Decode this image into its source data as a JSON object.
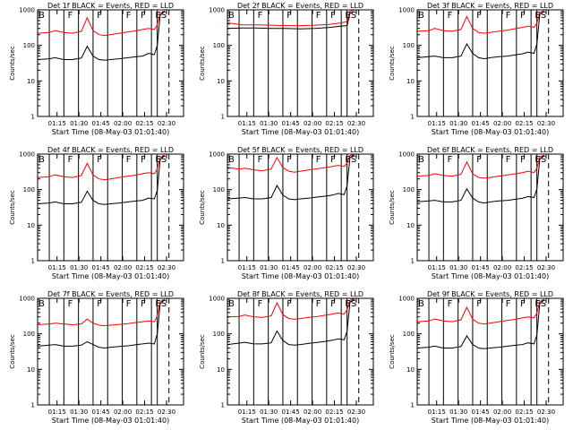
{
  "figure": {
    "background": "#ffffff",
    "colors": {
      "events": "#000000",
      "lld": "#ff0000",
      "axes": "#000000"
    }
  },
  "chart_data": [
    {
      "type": "line",
      "title": "Det 1f BLACK = Events, RED = LLD",
      "xlabel": "Start Time (08-May-03 01:01:40)",
      "ylabel": "Counts/sec",
      "yscale": "log",
      "ylim": [
        1,
        1000
      ],
      "y_ticks": [
        "1",
        "10",
        "100",
        "1000"
      ],
      "x_ticks": [
        "01:15",
        "01:30",
        "01:45",
        "02:00",
        "02:15",
        "02:30"
      ],
      "xlim_minutes": [
        0,
        100
      ],
      "segment_markers": [
        "B",
        "F",
        "F",
        "F",
        "F",
        "E",
        "S"
      ],
      "series": [
        {
          "name": "BLACK = Events",
          "color": "#000000",
          "x": [
            0,
            8,
            12,
            18,
            24,
            30,
            34,
            38,
            42,
            46,
            50,
            56,
            62,
            68,
            72,
            76,
            80,
            82,
            84,
            87
          ],
          "y": [
            40,
            42,
            45,
            40,
            40,
            44,
            95,
            50,
            40,
            38,
            40,
            42,
            45,
            48,
            50,
            60,
            55,
            100,
            700,
            900
          ]
        },
        {
          "name": "RED = LLD",
          "color": "#ff0000",
          "x": [
            0,
            8,
            12,
            18,
            24,
            30,
            34,
            38,
            42,
            46,
            50,
            56,
            62,
            68,
            72,
            76,
            80,
            82,
            84,
            87
          ],
          "y": [
            220,
            230,
            260,
            230,
            220,
            250,
            600,
            260,
            200,
            190,
            200,
            220,
            240,
            260,
            280,
            300,
            280,
            380,
            800,
            950
          ]
        }
      ]
    },
    {
      "type": "line",
      "title": "Det 2f BLACK = Events, RED = LLD",
      "xlabel": "Start Time (08-May-03 01:01:40)",
      "ylabel": "Counts/sec",
      "yscale": "log",
      "ylim": [
        1,
        1000
      ],
      "y_ticks": [
        "1",
        "10",
        "100",
        "1000"
      ],
      "x_ticks": [
        "01:15",
        "01:30",
        "01:45",
        "02:00",
        "02:15",
        "02:30"
      ],
      "xlim_minutes": [
        0,
        100
      ],
      "segment_markers": [
        "B",
        "F",
        "F",
        "F",
        "F",
        "E",
        "S"
      ],
      "series": [
        {
          "name": "BLACK = Events",
          "color": "#000000",
          "x": [
            0,
            10,
            20,
            30,
            40,
            50,
            60,
            70,
            78,
            82,
            84,
            87
          ],
          "y": [
            300,
            310,
            310,
            300,
            300,
            290,
            300,
            320,
            350,
            360,
            800,
            900
          ]
        },
        {
          "name": "RED = LLD",
          "color": "#ff0000",
          "x": [
            0,
            10,
            20,
            30,
            40,
            50,
            60,
            70,
            78,
            82,
            84,
            87
          ],
          "y": [
            430,
            380,
            380,
            370,
            360,
            360,
            370,
            390,
            430,
            470,
            900,
            1000
          ]
        }
      ]
    },
    {
      "type": "line",
      "title": "Det 3f BLACK = Events, RED = LLD",
      "xlabel": "Start Time (08-May-03 01:01:40)",
      "ylabel": "Counts/sec",
      "yscale": "log",
      "ylim": [
        1,
        1000
      ],
      "y_ticks": [
        "1",
        "10",
        "100",
        "1000"
      ],
      "x_ticks": [
        "01:15",
        "01:30",
        "01:45",
        "02:00",
        "02:15",
        "02:30"
      ],
      "xlim_minutes": [
        0,
        100
      ],
      "segment_markers": [
        "B",
        "F",
        "F",
        "F",
        "F",
        "E",
        "S"
      ],
      "series": [
        {
          "name": "BLACK = Events",
          "color": "#000000",
          "x": [
            0,
            8,
            12,
            18,
            24,
            30,
            34,
            38,
            42,
            46,
            50,
            56,
            62,
            68,
            72,
            76,
            80,
            82,
            84,
            87
          ],
          "y": [
            45,
            48,
            50,
            45,
            45,
            50,
            110,
            60,
            45,
            42,
            45,
            48,
            50,
            55,
            58,
            65,
            60,
            110,
            750,
            900
          ]
        },
        {
          "name": "RED = LLD",
          "color": "#ff0000",
          "x": [
            0,
            8,
            12,
            18,
            24,
            30,
            34,
            38,
            42,
            46,
            50,
            56,
            62,
            68,
            72,
            76,
            80,
            82,
            84,
            87
          ],
          "y": [
            250,
            260,
            300,
            260,
            250,
            280,
            650,
            300,
            230,
            220,
            230,
            250,
            270,
            300,
            320,
            350,
            320,
            420,
            850,
            950
          ]
        }
      ]
    },
    {
      "type": "line",
      "title": "Det 4f BLACK = Events, RED = LLD",
      "xlabel": "Start Time (08-May-03 01:01:40)",
      "ylabel": "Counts/sec",
      "yscale": "log",
      "ylim": [
        1,
        1000
      ],
      "y_ticks": [
        "1",
        "10",
        "100",
        "1000"
      ],
      "x_ticks": [
        "01:15",
        "01:30",
        "01:45",
        "02:00",
        "02:15",
        "02:30"
      ],
      "xlim_minutes": [
        0,
        100
      ],
      "segment_markers": [
        "B",
        "F",
        "F",
        "F",
        "F",
        "E",
        "S"
      ],
      "series": [
        {
          "name": "BLACK = Events",
          "color": "#000000",
          "x": [
            0,
            8,
            12,
            18,
            24,
            30,
            34,
            38,
            42,
            46,
            50,
            56,
            62,
            68,
            72,
            76,
            80,
            82,
            84,
            87
          ],
          "y": [
            40,
            42,
            45,
            40,
            40,
            44,
            90,
            50,
            40,
            38,
            40,
            42,
            45,
            48,
            50,
            58,
            55,
            95,
            700,
            900
          ]
        },
        {
          "name": "RED = LLD",
          "color": "#ff0000",
          "x": [
            0,
            8,
            12,
            18,
            24,
            30,
            34,
            38,
            42,
            46,
            50,
            56,
            62,
            68,
            72,
            76,
            80,
            82,
            84,
            87
          ],
          "y": [
            220,
            230,
            260,
            230,
            220,
            250,
            550,
            260,
            200,
            190,
            200,
            220,
            240,
            260,
            280,
            300,
            280,
            380,
            800,
            950
          ]
        }
      ]
    },
    {
      "type": "line",
      "title": "Det 5f BLACK = Events, RED = LLD",
      "xlabel": "Start Time (08-May-03 01:01:40)",
      "ylabel": "Counts/sec",
      "yscale": "log",
      "ylim": [
        1,
        1000
      ],
      "y_ticks": [
        "1",
        "10",
        "100",
        "1000"
      ],
      "x_ticks": [
        "01:15",
        "01:30",
        "01:45",
        "02:00",
        "02:15",
        "02:30"
      ],
      "xlim_minutes": [
        0,
        100
      ],
      "segment_markers": [
        "B",
        "F",
        "F",
        "F",
        "F",
        "E",
        "S"
      ],
      "series": [
        {
          "name": "BLACK = Events",
          "color": "#000000",
          "x": [
            0,
            8,
            12,
            18,
            24,
            30,
            34,
            38,
            42,
            46,
            50,
            56,
            62,
            68,
            72,
            76,
            80,
            82,
            84,
            87
          ],
          "y": [
            55,
            58,
            60,
            55,
            55,
            60,
            130,
            70,
            55,
            52,
            55,
            58,
            62,
            66,
            70,
            78,
            72,
            130,
            800,
            950
          ]
        },
        {
          "name": "RED = LLD",
          "color": "#ff0000",
          "x": [
            0,
            8,
            12,
            18,
            24,
            30,
            34,
            38,
            42,
            46,
            50,
            56,
            62,
            68,
            72,
            76,
            80,
            82,
            84,
            87
          ],
          "y": [
            420,
            380,
            400,
            360,
            340,
            380,
            800,
            420,
            330,
            310,
            330,
            360,
            390,
            420,
            450,
            480,
            450,
            560,
            900,
            1000
          ]
        }
      ]
    },
    {
      "type": "line",
      "title": "Det 6f BLACK = Events, RED = LLD",
      "xlabel": "Start Time (08-May-03 01:01:40)",
      "ylabel": "Counts/sec",
      "yscale": "log",
      "ylim": [
        1,
        1000
      ],
      "y_ticks": [
        "1",
        "10",
        "100",
        "1000"
      ],
      "x_ticks": [
        "01:15",
        "01:30",
        "01:45",
        "02:00",
        "02:15",
        "02:30"
      ],
      "xlim_minutes": [
        0,
        100
      ],
      "segment_markers": [
        "B",
        "F",
        "F",
        "F",
        "F",
        "E",
        "S"
      ],
      "series": [
        {
          "name": "BLACK = Events",
          "color": "#000000",
          "x": [
            0,
            8,
            12,
            18,
            24,
            30,
            34,
            38,
            42,
            46,
            50,
            56,
            62,
            68,
            72,
            76,
            80,
            82,
            84,
            87
          ],
          "y": [
            45,
            48,
            50,
            45,
            45,
            50,
            105,
            58,
            45,
            42,
            45,
            48,
            50,
            54,
            57,
            64,
            60,
            105,
            720,
            900
          ]
        },
        {
          "name": "RED = LLD",
          "color": "#ff0000",
          "x": [
            0,
            8,
            12,
            18,
            24,
            30,
            34,
            38,
            42,
            46,
            50,
            56,
            62,
            68,
            72,
            76,
            80,
            82,
            84,
            87
          ],
          "y": [
            240,
            250,
            280,
            250,
            240,
            270,
            600,
            280,
            220,
            210,
            220,
            240,
            260,
            280,
            300,
            330,
            300,
            400,
            820,
            950
          ]
        }
      ]
    },
    {
      "type": "line",
      "title": "Det 7f BLACK = Events, RED = LLD",
      "xlabel": "Start Time (08-May-03 01:01:40)",
      "ylabel": "Counts/sec",
      "yscale": "log",
      "ylim": [
        1,
        1000
      ],
      "y_ticks": [
        "1",
        "10",
        "100",
        "1000"
      ],
      "x_ticks": [
        "01:15",
        "01:30",
        "01:45",
        "02:00",
        "02:15",
        "02:30"
      ],
      "xlim_minutes": [
        0,
        100
      ],
      "segment_markers": [
        "B",
        "F",
        "F",
        "F",
        "F",
        "E",
        "S"
      ],
      "series": [
        {
          "name": "BLACK = Events",
          "color": "#000000",
          "x": [
            0,
            8,
            12,
            18,
            24,
            30,
            34,
            38,
            42,
            46,
            50,
            56,
            62,
            68,
            72,
            76,
            80,
            82,
            84,
            87
          ],
          "y": [
            45,
            48,
            50,
            45,
            45,
            48,
            60,
            50,
            42,
            40,
            42,
            44,
            46,
            50,
            52,
            55,
            52,
            100,
            700,
            900
          ]
        },
        {
          "name": "RED = LLD",
          "color": "#ff0000",
          "x": [
            0,
            8,
            12,
            18,
            24,
            30,
            34,
            38,
            42,
            46,
            50,
            56,
            62,
            68,
            72,
            76,
            80,
            82,
            84,
            87
          ],
          "y": [
            180,
            190,
            200,
            190,
            180,
            190,
            260,
            200,
            175,
            170,
            175,
            185,
            195,
            210,
            220,
            230,
            220,
            320,
            800,
            950
          ]
        }
      ]
    },
    {
      "type": "line",
      "title": "Det 8f BLACK = Events, RED = LLD",
      "xlabel": "Start Time (08-May-03 01:01:40)",
      "ylabel": "Counts/sec",
      "yscale": "log",
      "ylim": [
        1,
        1000
      ],
      "y_ticks": [
        "1",
        "10",
        "100",
        "1000"
      ],
      "x_ticks": [
        "01:15",
        "01:30",
        "01:45",
        "02:00",
        "02:15",
        "02:30"
      ],
      "xlim_minutes": [
        0,
        100
      ],
      "segment_markers": [
        "B",
        "F",
        "F",
        "F",
        "F",
        "E",
        "S"
      ],
      "series": [
        {
          "name": "BLACK = Events",
          "color": "#000000",
          "x": [
            0,
            8,
            12,
            18,
            24,
            30,
            34,
            38,
            42,
            46,
            50,
            56,
            62,
            68,
            72,
            76,
            80,
            82,
            84,
            87
          ],
          "y": [
            50,
            55,
            58,
            52,
            52,
            56,
            120,
            65,
            50,
            48,
            50,
            54,
            58,
            62,
            66,
            72,
            68,
            120,
            780,
            950
          ]
        },
        {
          "name": "RED = LLD",
          "color": "#ff0000",
          "x": [
            0,
            8,
            12,
            18,
            24,
            30,
            34,
            38,
            42,
            46,
            50,
            56,
            62,
            68,
            72,
            76,
            80,
            82,
            84,
            87
          ],
          "y": [
            300,
            310,
            340,
            300,
            290,
            320,
            750,
            350,
            270,
            260,
            270,
            290,
            310,
            340,
            360,
            390,
            360,
            480,
            880,
            1000
          ]
        }
      ]
    },
    {
      "type": "line",
      "title": "Det 9f BLACK = Events, RED = LLD",
      "xlabel": "Start Time (08-May-03 01:01:40)",
      "ylabel": "Counts/sec",
      "yscale": "log",
      "ylim": [
        1,
        1000
      ],
      "y_ticks": [
        "1",
        "10",
        "100",
        "1000"
      ],
      "x_ticks": [
        "01:15",
        "01:30",
        "01:45",
        "02:00",
        "02:15",
        "02:30"
      ],
      "xlim_minutes": [
        0,
        100
      ],
      "segment_markers": [
        "B",
        "F",
        "F",
        "F",
        "F",
        "E",
        "S"
      ],
      "series": [
        {
          "name": "BLACK = Events",
          "color": "#000000",
          "x": [
            0,
            8,
            12,
            18,
            24,
            30,
            34,
            38,
            42,
            46,
            50,
            56,
            62,
            68,
            72,
            76,
            80,
            82,
            84,
            87
          ],
          "y": [
            40,
            42,
            45,
            40,
            40,
            44,
            88,
            50,
            40,
            38,
            40,
            42,
            45,
            48,
            50,
            56,
            52,
            95,
            700,
            900
          ]
        },
        {
          "name": "RED = LLD",
          "color": "#ff0000",
          "x": [
            0,
            8,
            12,
            18,
            24,
            30,
            34,
            38,
            42,
            46,
            50,
            56,
            62,
            68,
            72,
            76,
            80,
            82,
            84,
            87
          ],
          "y": [
            220,
            230,
            260,
            230,
            220,
            250,
            560,
            260,
            200,
            190,
            200,
            220,
            240,
            260,
            280,
            300,
            280,
            380,
            800,
            950
          ]
        }
      ]
    }
  ]
}
